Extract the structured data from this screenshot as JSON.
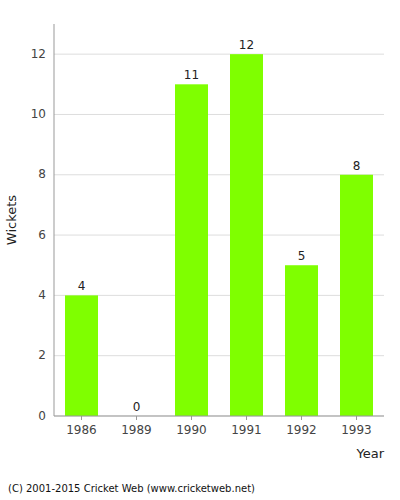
{
  "chart_data": {
    "type": "bar",
    "categories": [
      "1986",
      "1989",
      "1990",
      "1991",
      "1992",
      "1993"
    ],
    "values": [
      4,
      0,
      11,
      12,
      5,
      8
    ],
    "color": "#7FFF00",
    "ylabel": "Wickets",
    "xlabel": "Year",
    "ylim": [
      0,
      13
    ],
    "yticks": [
      0,
      2,
      4,
      6,
      8,
      10,
      12
    ],
    "grid": true,
    "data_labels": true,
    "annotations": [
      "(C) 2001-2015 Cricket Web (www.cricketweb.net)"
    ]
  }
}
